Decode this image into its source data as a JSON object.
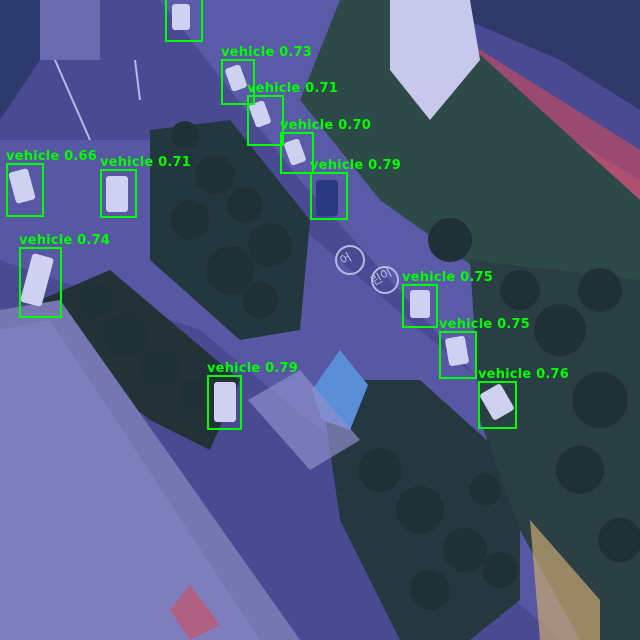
{
  "box_color": "#00ff00",
  "detections": [
    {
      "label": "vehicle 0.73"
    },
    {
      "label": "vehicle 0.71"
    },
    {
      "label": "vehicle 0.70"
    },
    {
      "label": "vehicle 0.79"
    },
    {
      "label": "vehicle 0.66"
    },
    {
      "label": "vehicle 0.71"
    },
    {
      "label": "vehicle 0.74"
    },
    {
      "label": "vehicle 0.75"
    },
    {
      "label": "vehicle 0.75"
    },
    {
      "label": "vehicle 0.76"
    },
    {
      "label": "vehicle 0.79"
    },
    {
      "label": ""
    }
  ],
  "ground_markings": {
    "left": "어",
    "right": "린이"
  }
}
